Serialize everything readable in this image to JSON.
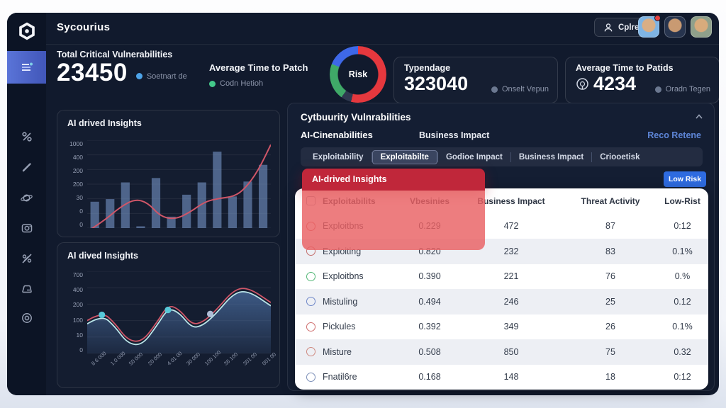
{
  "header": {
    "app_title": "Sycourius",
    "user_button_label": "Cplrer"
  },
  "sidebar": {
    "items": [
      "dashboard-list",
      "percent",
      "pencil",
      "planet",
      "camera",
      "slash-circle",
      "folder",
      "target"
    ]
  },
  "stats": {
    "stat1": {
      "label": "Total Critical Vulnerabilities",
      "value": "23450",
      "legend": "Soetnart de",
      "legend_color": "#4da3e8"
    },
    "stat2": {
      "label": "Average Time to Patch",
      "legend": "Codn Hetioh",
      "legend_color": "#43c98a"
    },
    "stat3": {
      "label": "Typendage",
      "value": "323040",
      "legend": "Onselt Vepun",
      "legend_color": "#6b7890"
    },
    "stat4": {
      "label": "Average Time to Patids",
      "value": "4234",
      "legend": "Oradn Tegen",
      "legend_color": "#6b7890"
    }
  },
  "right_panel": {
    "title": "Cytbuurity Vulnrabilities",
    "subtitle_left": "AI-Cinenabilities",
    "subtitle_mid": "Business Impact",
    "link": "Reco Retene",
    "tabs": [
      {
        "label": "Exploitability",
        "selected": false
      },
      {
        "label": "Exploitabilte",
        "selected": true
      },
      {
        "label": "Godioe Impact",
        "selected": false
      },
      {
        "label": "Business Impact",
        "selected": false
      },
      {
        "label": "Criooetisk",
        "selected": false
      }
    ],
    "overlay_title": "AI-drived Insights",
    "low_risk_button": "Low Risk"
  },
  "table": {
    "headers": [
      "Exploitabilits",
      "Vbesinies",
      "Business Impact",
      "Threat Activity",
      "Low-Rist"
    ],
    "rows": [
      {
        "name": "Exploitbns",
        "dot": "#d96a6a",
        "values": [
          "0.229",
          "472",
          "87",
          "0:12"
        ],
        "striped": false
      },
      {
        "name": "Exploiting",
        "dot": "#c4706e",
        "values": [
          "0.820",
          "232",
          "83",
          "0.1%"
        ],
        "striped": true
      },
      {
        "name": "Exploitbns",
        "dot": "#55b878",
        "values": [
          "0.390",
          "221",
          "76",
          "0.%"
        ],
        "striped": false
      },
      {
        "name": "Mistuling",
        "dot": "#6f87c8",
        "values": [
          "0.494",
          "246",
          "25",
          "0.12"
        ],
        "striped": true
      },
      {
        "name": "Pickules",
        "dot": "#cf6f6f",
        "values": [
          "0.392",
          "349",
          "26",
          "0.1%"
        ],
        "striped": false
      },
      {
        "name": "Misture",
        "dot": "#cf8a80",
        "values": [
          "0.508",
          "850",
          "75",
          "0.32"
        ],
        "striped": true
      },
      {
        "name": "Fnatil6re",
        "dot": "#7d90b8",
        "values": [
          "0.168",
          "148",
          "18",
          "0:12"
        ],
        "striped": false
      }
    ]
  },
  "chart_data": [
    {
      "type": "bar",
      "title": "AI drived Insights",
      "y_ticks": [
        "1000",
        "400",
        "200",
        "200",
        "30",
        "0",
        "0"
      ],
      "bar_values": [
        30,
        33,
        52,
        2,
        57,
        13,
        38,
        52,
        87,
        36,
        53,
        72
      ],
      "line_points": [
        [
          0,
          -4
        ],
        [
          9,
          8
        ],
        [
          18,
          24
        ],
        [
          26,
          33
        ],
        [
          33,
          29
        ],
        [
          40,
          13
        ],
        [
          48,
          10
        ],
        [
          56,
          18
        ],
        [
          64,
          30
        ],
        [
          72,
          34
        ],
        [
          80,
          36
        ],
        [
          86,
          45
        ],
        [
          93,
          65
        ],
        [
          100,
          95
        ]
      ],
      "bar_color": "#7495c6",
      "line_color": "#cf5668",
      "grid": true,
      "legend_position": "none"
    },
    {
      "type": "area",
      "title": "AI dived Insights",
      "y_ticks": [
        "700",
        "400",
        "200",
        "100",
        "10",
        "0"
      ],
      "x_ticks": [
        "8.6 000",
        "1.0 000",
        "50 000",
        "20 000",
        "4.01 00",
        "30 000",
        "100 100",
        "36 100",
        "301 00",
        "001 00"
      ],
      "line_points": [
        [
          0,
          36
        ],
        [
          8,
          47
        ],
        [
          15,
          33
        ],
        [
          22,
          12
        ],
        [
          30,
          10
        ],
        [
          38,
          34
        ],
        [
          44,
          55
        ],
        [
          50,
          50
        ],
        [
          57,
          31
        ],
        [
          63,
          34
        ],
        [
          70,
          48
        ],
        [
          80,
          74
        ],
        [
          88,
          76
        ],
        [
          100,
          58
        ]
      ],
      "dots": [
        [
          8,
          47
        ],
        [
          44,
          53
        ],
        [
          67,
          48
        ]
      ],
      "area_color": "#4a6da0",
      "line_color": "#cf5668",
      "line2_color": "#b9e4e8",
      "dot_color": "#57c8d8",
      "grid": true,
      "legend_position": "none"
    },
    {
      "type": "pie",
      "label": "Risk",
      "segments": [
        {
          "name": "red",
          "color": "#e5383e",
          "pct": 54
        },
        {
          "name": "dark",
          "color": "#2f3950",
          "pct": 6
        },
        {
          "name": "green",
          "color": "#3fa968",
          "pct": 21
        },
        {
          "name": "blue",
          "color": "#3e68e8",
          "pct": 19
        }
      ]
    }
  ]
}
